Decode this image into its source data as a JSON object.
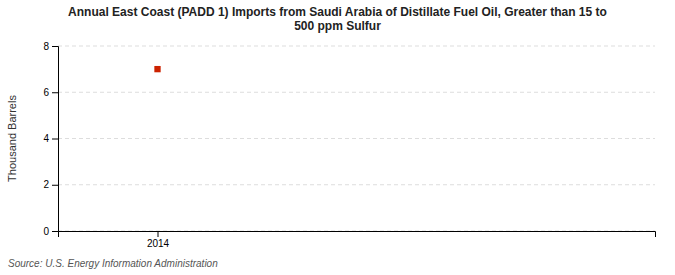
{
  "chart_data": {
    "type": "scatter",
    "title": "Annual East Coast (PADD 1) Imports from Saudi Arabia of Distillate Fuel Oil, Greater than 15 to\n500 ppm Sulfur",
    "y_label": "Thousand Barrels",
    "source": "Source: U.S. Energy Information Administration",
    "x": [
      2014
    ],
    "values": [
      7.0
    ],
    "color": "#cc2200",
    "marker": "square",
    "xlim": [
      2013.6,
      2016.0
    ],
    "xticks": [
      2014
    ],
    "ylim": [
      0,
      8
    ],
    "yticks": [
      0,
      2,
      4,
      6,
      8
    ],
    "grid": "y"
  }
}
